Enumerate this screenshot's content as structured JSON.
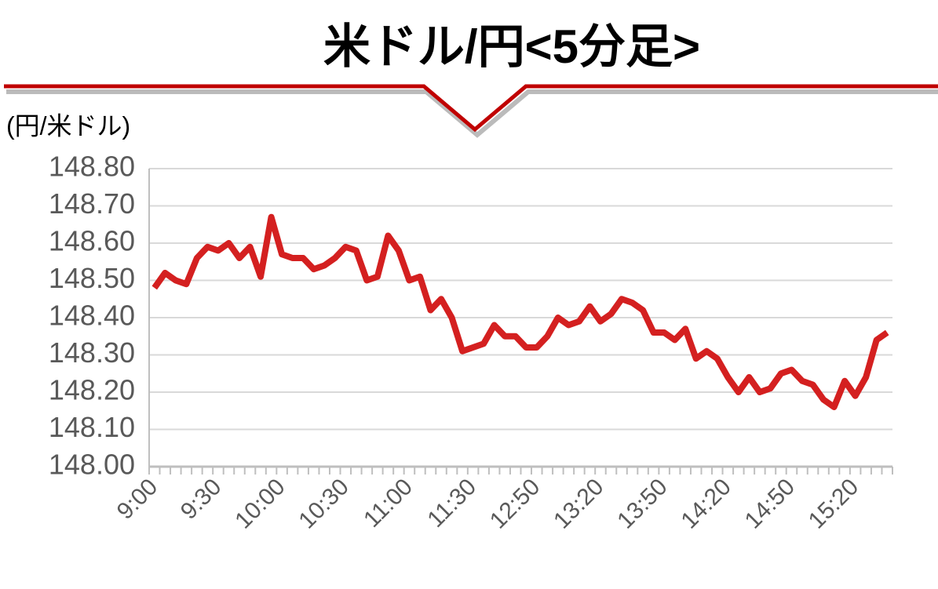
{
  "chart_data": {
    "type": "line",
    "title": "米ドル/円<5分足>",
    "y_label": "(円/米ドル)",
    "categories": [
      "9:00",
      null,
      null,
      null,
      null,
      null,
      "9:30",
      null,
      null,
      null,
      null,
      null,
      "10:00",
      null,
      null,
      null,
      null,
      null,
      "10:30",
      null,
      null,
      null,
      null,
      null,
      "11:00",
      null,
      null,
      null,
      null,
      null,
      "11:30",
      null,
      null,
      null,
      null,
      null,
      "12:50",
      null,
      null,
      null,
      null,
      null,
      "13:20",
      null,
      null,
      null,
      null,
      null,
      "13:50",
      null,
      null,
      null,
      null,
      null,
      "14:20",
      null,
      null,
      null,
      null,
      null,
      "14:50",
      null,
      null,
      null,
      null,
      null,
      "15:20",
      null,
      null,
      null
    ],
    "series": [
      {
        "name": "米ドル/円",
        "color": "#d42020",
        "values": [
          148.48,
          148.52,
          148.5,
          148.49,
          148.56,
          148.59,
          148.58,
          148.6,
          148.56,
          148.59,
          148.51,
          148.67,
          148.57,
          148.56,
          148.56,
          148.53,
          148.54,
          148.56,
          148.59,
          148.58,
          148.5,
          148.51,
          148.62,
          148.58,
          148.5,
          148.51,
          148.42,
          148.45,
          148.4,
          148.31,
          148.32,
          148.33,
          148.38,
          148.35,
          148.35,
          148.32,
          148.32,
          148.35,
          148.4,
          148.38,
          148.39,
          148.43,
          148.39,
          148.41,
          148.45,
          148.44,
          148.42,
          148.36,
          148.36,
          148.34,
          148.37,
          148.29,
          148.31,
          148.29,
          148.24,
          148.2,
          148.24,
          148.2,
          148.21,
          148.25,
          148.26,
          148.23,
          148.22,
          148.18,
          148.16,
          148.23,
          148.19,
          148.24,
          148.34,
          148.36
        ]
      }
    ],
    "ylim": [
      148.0,
      148.8
    ],
    "yticks": [
      {
        "value": 148.0,
        "label": "148.00"
      },
      {
        "value": 148.1,
        "label": "148.10"
      },
      {
        "value": 148.2,
        "label": "148.20"
      },
      {
        "value": 148.3,
        "label": "148.30"
      },
      {
        "value": 148.4,
        "label": "148.40"
      },
      {
        "value": 148.5,
        "label": "148.50"
      },
      {
        "value": 148.6,
        "label": "148.60"
      },
      {
        "value": 148.7,
        "label": "148.70"
      },
      {
        "value": 148.8,
        "label": "148.80"
      }
    ],
    "grid": true
  }
}
